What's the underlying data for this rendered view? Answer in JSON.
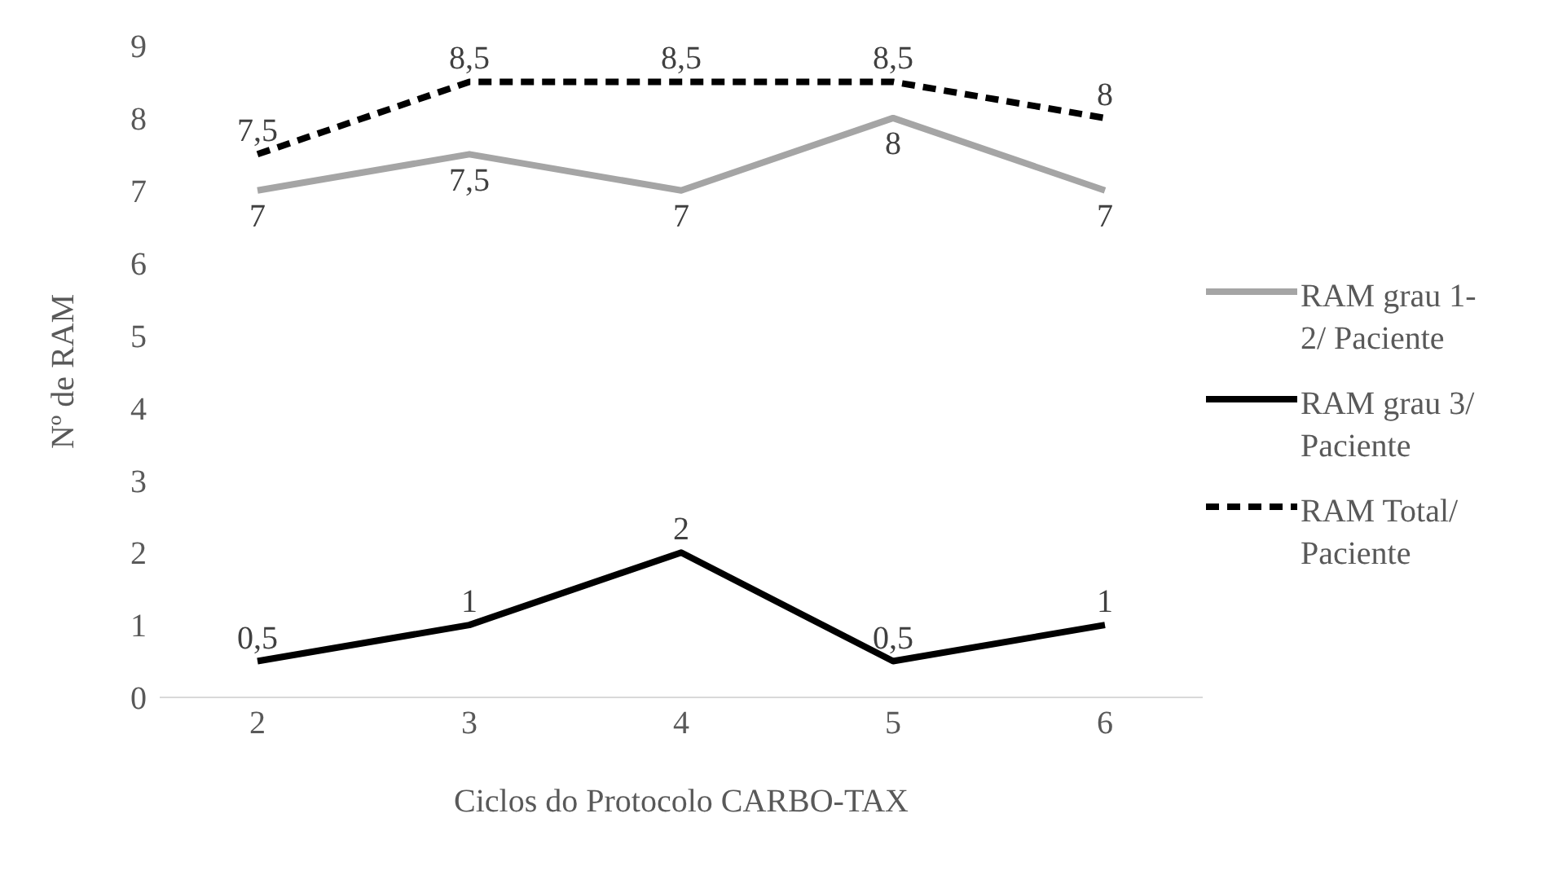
{
  "chart_data": {
    "type": "line",
    "xlabel": "Ciclos do Protocolo CARBO-TAX",
    "ylabel": "Nº de RAM",
    "categories": [
      "2",
      "3",
      "4",
      "5",
      "6"
    ],
    "ylim": [
      0,
      9
    ],
    "yticks": [
      0,
      1,
      2,
      3,
      4,
      5,
      6,
      7,
      8,
      9
    ],
    "grid": false,
    "legend": "right",
    "marker": "none",
    "series": [
      {
        "name": "RAM grau 1-2/ Paciente",
        "color": "#a5a5a5",
        "values": [
          7,
          7.5,
          7,
          8,
          7
        ],
        "value_labels": [
          "7",
          "7,5",
          "7",
          "8",
          "7"
        ],
        "line_style": "solid"
      },
      {
        "name": "RAM grau 3/ Paciente",
        "color": "#000000",
        "values": [
          0.5,
          1,
          2,
          0.5,
          1
        ],
        "value_labels": [
          "0,5",
          "1",
          "2",
          "0,5",
          "1"
        ],
        "line_style": "solid"
      },
      {
        "name": "RAM Total/ Paciente",
        "color": "#000000",
        "values": [
          7.5,
          8.5,
          8.5,
          8.5,
          8
        ],
        "value_labels": [
          "7,5",
          "8,5",
          "8,5",
          "8,5",
          "8"
        ],
        "line_style": "dashed"
      }
    ]
  }
}
